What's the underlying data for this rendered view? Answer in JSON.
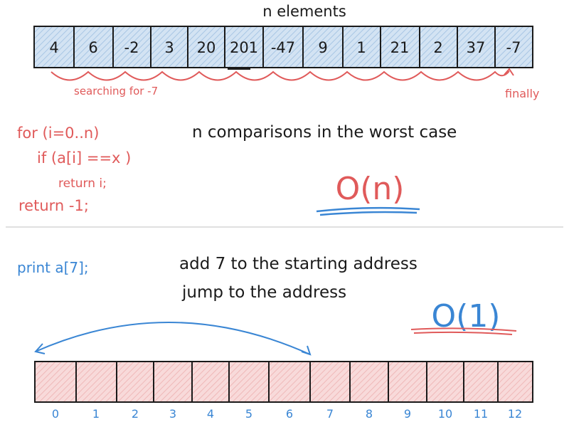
{
  "top": {
    "title": "n elements",
    "elements": [
      "4",
      "6",
      "-2",
      "3",
      "20",
      "201",
      "-47",
      "9",
      "1",
      "21",
      "2",
      "37",
      "-7"
    ],
    "search_label": "searching for -7",
    "found_label": "finally"
  },
  "code": {
    "lines": [
      "for (i=0..n)",
      "if (a[i] ==x )",
      "return i;",
      "return -1;"
    ]
  },
  "linear": {
    "note": "n comparisons in the worst case",
    "complexity": "O(n)"
  },
  "bottom": {
    "print_code": "print a[7];",
    "step1": "add 7 to the starting address",
    "step2": "jump to the address",
    "complexity": "O(1)",
    "indices": [
      "0",
      "1",
      "2",
      "3",
      "4",
      "5",
      "6",
      "7",
      "8",
      "9",
      "10",
      "11",
      "12"
    ]
  },
  "colors": {
    "ink": "#1a1a1a",
    "red": "#e05a5a",
    "blue": "#3a86d4",
    "top_fill": "#bcd3ea",
    "bottom_fill": "#f2c6c6"
  }
}
